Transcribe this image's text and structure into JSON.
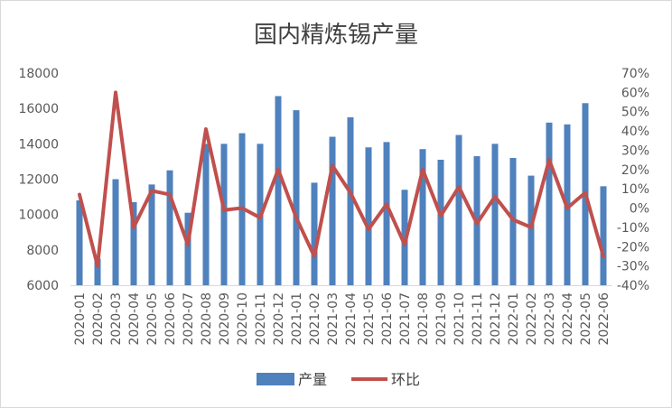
{
  "chart_data": {
    "type": "bar",
    "title": "国内精炼锡产量",
    "categories": [
      "2020-01",
      "2020-02",
      "2020-03",
      "2020-04",
      "2020-05",
      "2020-06",
      "2020-07",
      "2020-08",
      "2020-09",
      "2020-10",
      "2020-11",
      "2020-12",
      "2021-01",
      "2021-02",
      "2021-03",
      "2021-04",
      "2021-05",
      "2021-06",
      "2021-07",
      "2021-08",
      "2021-09",
      "2021-10",
      "2021-11",
      "2021-12",
      "2022-01",
      "2022-02",
      "2022-03",
      "2022-04",
      "2022-05",
      "2022-06"
    ],
    "series": [
      {
        "name": "产量",
        "type": "bar",
        "axis": "left",
        "color": "#4f81bd",
        "values": [
          10800,
          7500,
          12000,
          10700,
          11700,
          12500,
          10100,
          14000,
          14000,
          14600,
          14000,
          16700,
          15900,
          11800,
          14400,
          15500,
          13800,
          14100,
          11400,
          13700,
          13100,
          14500,
          13300,
          14000,
          13200,
          12200,
          15200,
          15100,
          16300,
          11600
        ]
      },
      {
        "name": "环比",
        "type": "line",
        "axis": "right",
        "color": "#c0504d",
        "values": [
          7,
          -30,
          60,
          -10,
          9,
          7,
          -19,
          41,
          -1,
          0,
          -5,
          20,
          -5,
          -25,
          22,
          8,
          -11,
          2,
          -19,
          20,
          -4,
          11,
          -8,
          6,
          -6,
          -10,
          25,
          0,
          8,
          -25
        ]
      }
    ],
    "yleft": {
      "ylim": [
        6000,
        18000
      ],
      "ticks": [
        "6000",
        "8000",
        "10000",
        "12000",
        "14000",
        "16000",
        "18000"
      ]
    },
    "yright": {
      "ylim": [
        -40,
        70
      ],
      "ticks": [
        "-40%",
        "-30%",
        "-20%",
        "-10%",
        "0%",
        "10%",
        "20%",
        "30%",
        "40%",
        "50%",
        "60%",
        "70%"
      ]
    },
    "legend": {
      "position": "bottom",
      "items": [
        "产量",
        "环比"
      ]
    },
    "grid": false
  }
}
